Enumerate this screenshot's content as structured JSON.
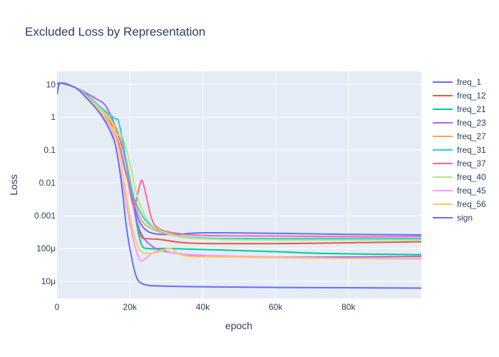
{
  "chart_data": {
    "type": "line",
    "title": "Excluded Loss by Representation",
    "xlabel": "epoch",
    "ylabel": "Loss",
    "x_scale": "linear",
    "y_scale": "log",
    "xlim": [
      0,
      100000
    ],
    "ylim": [
      3e-06,
      25
    ],
    "x_ticks": [
      {
        "value": 0,
        "label": "0"
      },
      {
        "value": 20000,
        "label": "20k"
      },
      {
        "value": 40000,
        "label": "40k"
      },
      {
        "value": 60000,
        "label": "60k"
      },
      {
        "value": 80000,
        "label": "80k"
      }
    ],
    "y_ticks": [
      {
        "value": 10,
        "label": "10"
      },
      {
        "value": 1,
        "label": "1"
      },
      {
        "value": 0.1,
        "label": "0.1"
      },
      {
        "value": 0.01,
        "label": "0.01"
      },
      {
        "value": 0.001,
        "label": "0.001"
      },
      {
        "value": 0.0001,
        "label": "100μ"
      },
      {
        "value": 1e-05,
        "label": "10μ"
      }
    ],
    "grid": true,
    "legend_position": "right",
    "plot_background": "#e5ecf6",
    "series": [
      {
        "name": "freq_1",
        "color": "#636efa",
        "points": [
          [
            0,
            5
          ],
          [
            1000,
            11
          ],
          [
            5000,
            8
          ],
          [
            8000,
            4.5
          ],
          [
            12000,
            1.3
          ],
          [
            15000,
            0.45
          ],
          [
            17000,
            0.15
          ],
          [
            18500,
            0.03
          ],
          [
            20000,
            0.007
          ],
          [
            22000,
            0.001
          ],
          [
            24000,
            0.0004
          ],
          [
            27000,
            0.00028
          ],
          [
            33000,
            0.00027
          ],
          [
            40000,
            0.0003
          ],
          [
            60000,
            0.00029
          ],
          [
            80000,
            0.00027
          ],
          [
            100000,
            0.00026
          ]
        ]
      },
      {
        "name": "freq_12",
        "color": "#EF553B",
        "points": [
          [
            0,
            10
          ],
          [
            1000,
            11
          ],
          [
            5000,
            8
          ],
          [
            8000,
            4
          ],
          [
            12000,
            1.5
          ],
          [
            15000,
            0.6
          ],
          [
            17000,
            0.25
          ],
          [
            19000,
            0.04
          ],
          [
            21000,
            0.002
          ],
          [
            23000,
            0.00025
          ],
          [
            25000,
            0.0002
          ],
          [
            28000,
            0.00019
          ],
          [
            35000,
            0.00015
          ],
          [
            45000,
            0.00014
          ],
          [
            60000,
            0.00014
          ],
          [
            80000,
            0.00015
          ],
          [
            100000,
            0.00016
          ]
        ]
      },
      {
        "name": "freq_21",
        "color": "#00cc96",
        "points": [
          [
            0,
            10
          ],
          [
            1000,
            11
          ],
          [
            5000,
            8
          ],
          [
            8000,
            4.5
          ],
          [
            12000,
            2
          ],
          [
            15000,
            0.8
          ],
          [
            17000,
            0.3
          ],
          [
            19000,
            0.04
          ],
          [
            21000,
            0.002
          ],
          [
            23000,
            0.00015
          ],
          [
            25000,
            0.0001
          ],
          [
            30000,
            0.0001
          ],
          [
            45000,
            9e-05
          ],
          [
            60000,
            8e-05
          ],
          [
            75000,
            7e-05
          ],
          [
            100000,
            6.5e-05
          ]
        ]
      },
      {
        "name": "freq_23",
        "color": "#ab63fa",
        "points": [
          [
            0,
            10
          ],
          [
            1000,
            11
          ],
          [
            5000,
            8
          ],
          [
            8000,
            5.5
          ],
          [
            11000,
            3.5
          ],
          [
            13000,
            2.5
          ],
          [
            15000,
            1
          ],
          [
            17000,
            0.25
          ],
          [
            19000,
            0.04
          ],
          [
            21000,
            0.002
          ],
          [
            23000,
            0.0003
          ],
          [
            26000,
            0.00012
          ],
          [
            30000,
            8e-05
          ],
          [
            40000,
            6e-05
          ],
          [
            60000,
            5.5e-05
          ],
          [
            80000,
            5.5e-05
          ],
          [
            100000,
            5.8e-05
          ]
        ]
      },
      {
        "name": "freq_27",
        "color": "#FFA15A",
        "points": [
          [
            0,
            10
          ],
          [
            1000,
            11
          ],
          [
            5000,
            8
          ],
          [
            8000,
            4.5
          ],
          [
            12000,
            2
          ],
          [
            15000,
            0.8
          ],
          [
            17000,
            0.3
          ],
          [
            19000,
            0.05
          ],
          [
            21000,
            0.004
          ],
          [
            23000,
            0.0008
          ],
          [
            26000,
            0.0004
          ],
          [
            32000,
            0.00025
          ],
          [
            40000,
            0.0002
          ],
          [
            60000,
            0.0002
          ],
          [
            80000,
            0.0002
          ],
          [
            100000,
            0.0002
          ]
        ]
      },
      {
        "name": "freq_31",
        "color": "#19d3f3",
        "points": [
          [
            0,
            10
          ],
          [
            1000,
            11
          ],
          [
            5000,
            8
          ],
          [
            8000,
            5
          ],
          [
            12000,
            2
          ],
          [
            14500,
            1.2
          ],
          [
            16000,
            0.9
          ],
          [
            16800,
            0.8
          ],
          [
            18000,
            0.2
          ],
          [
            20000,
            0.01
          ],
          [
            22000,
            0.002
          ],
          [
            25000,
            0.0006
          ],
          [
            30000,
            0.0003
          ],
          [
            40000,
            0.00021
          ],
          [
            60000,
            0.0002
          ],
          [
            80000,
            0.0002
          ],
          [
            100000,
            0.0002
          ]
        ]
      },
      {
        "name": "freq_37",
        "color": "#FF6692",
        "points": [
          [
            0,
            10
          ],
          [
            1000,
            11
          ],
          [
            5000,
            8
          ],
          [
            8000,
            4.5
          ],
          [
            12000,
            1.5
          ],
          [
            15000,
            0.5
          ],
          [
            17000,
            0.15
          ],
          [
            19000,
            0.02
          ],
          [
            21000,
            0.002
          ],
          [
            22500,
            0.007
          ],
          [
            23300,
            0.012
          ],
          [
            24300,
            0.005
          ],
          [
            26000,
            0.0008
          ],
          [
            28000,
            0.0004
          ],
          [
            32000,
            0.0003
          ],
          [
            40000,
            0.00025
          ],
          [
            60000,
            0.00024
          ],
          [
            80000,
            0.00023
          ],
          [
            100000,
            0.00023
          ]
        ]
      },
      {
        "name": "freq_40",
        "color": "#B6E880",
        "points": [
          [
            0,
            10
          ],
          [
            1000,
            11
          ],
          [
            5000,
            8
          ],
          [
            8000,
            4.5
          ],
          [
            12000,
            1.8
          ],
          [
            15000,
            0.7
          ],
          [
            16500,
            0.3
          ],
          [
            18000,
            0.25
          ],
          [
            20000,
            0.04
          ],
          [
            22000,
            0.004
          ],
          [
            25000,
            0.0007
          ],
          [
            30000,
            0.0003
          ],
          [
            40000,
            0.0002
          ],
          [
            60000,
            0.00018
          ],
          [
            80000,
            0.00018
          ],
          [
            100000,
            0.00018
          ]
        ]
      },
      {
        "name": "freq_45",
        "color": "#FF97FF",
        "points": [
          [
            0,
            10
          ],
          [
            1000,
            11
          ],
          [
            5000,
            8
          ],
          [
            8000,
            4
          ],
          [
            12000,
            1.3
          ],
          [
            15000,
            0.4
          ],
          [
            16800,
            0.05
          ],
          [
            18500,
            0.005
          ],
          [
            20500,
            0.0003
          ],
          [
            22500,
            5e-05
          ],
          [
            23800,
            4.5e-05
          ],
          [
            26000,
            7e-05
          ],
          [
            29000,
            9e-05
          ],
          [
            33000,
            7e-05
          ],
          [
            45000,
            6e-05
          ],
          [
            60000,
            5.5e-05
          ],
          [
            80000,
            5e-05
          ],
          [
            100000,
            4.8e-05
          ]
        ]
      },
      {
        "name": "freq_56",
        "color": "#FECB52",
        "points": [
          [
            0,
            10
          ],
          [
            1000,
            11
          ],
          [
            5000,
            8
          ],
          [
            8000,
            4.5
          ],
          [
            12000,
            1.5
          ],
          [
            15000,
            0.5
          ],
          [
            17000,
            0.1
          ],
          [
            18500,
            0.01
          ],
          [
            20500,
            0.0005
          ],
          [
            22500,
            0.0001
          ],
          [
            25000,
            7e-05
          ],
          [
            28000,
            8e-05
          ],
          [
            31000,
            0.0001
          ],
          [
            35000,
            6e-05
          ],
          [
            45000,
            5.5e-05
          ],
          [
            60000,
            5.2e-05
          ],
          [
            80000,
            5e-05
          ],
          [
            100000,
            5.2e-05
          ]
        ]
      },
      {
        "name": "sign",
        "color": "#636efa",
        "points": [
          [
            0,
            10
          ],
          [
            1000,
            11
          ],
          [
            5000,
            8
          ],
          [
            8000,
            4
          ],
          [
            12000,
            1.2
          ],
          [
            15000,
            0.3
          ],
          [
            16500,
            0.08
          ],
          [
            18000,
            0.005
          ],
          [
            19000,
            0.0005
          ],
          [
            20500,
            5e-05
          ],
          [
            22000,
            1.2e-05
          ],
          [
            24000,
            8e-06
          ],
          [
            28000,
            7.2e-06
          ],
          [
            40000,
            6.8e-06
          ],
          [
            60000,
            6.5e-06
          ],
          [
            100000,
            6.2e-06
          ]
        ]
      }
    ]
  }
}
